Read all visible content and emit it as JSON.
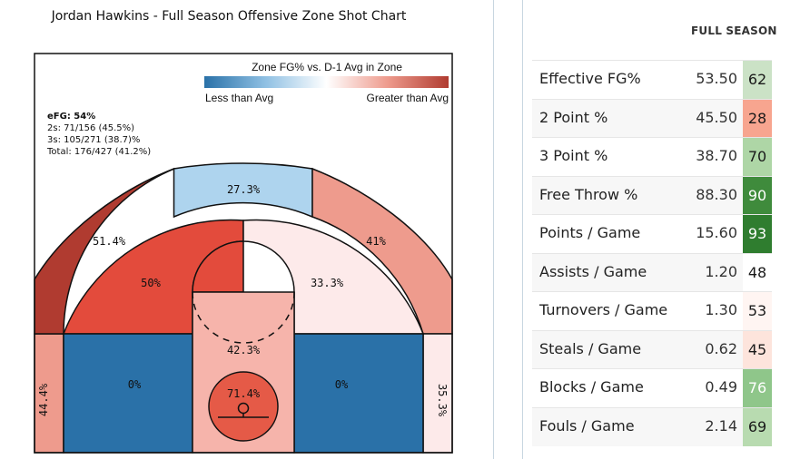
{
  "chart_data": {
    "type": "shot-chart",
    "title": "Jordan Hawkins - Full Season Offensive Zone Shot Chart",
    "legend": {
      "title": "Zone FG% vs. D-1 Avg in Zone",
      "low_label": "Less than Avg",
      "high_label": "Greater than Avg",
      "position": "top-right"
    },
    "summary": {
      "efg": "eFG: 54%",
      "twos": "2s: 71/156 (45.5%)",
      "threes": "3s: 105/271 (38.7)%",
      "total": "Total: 176/427 (41.2%)"
    },
    "zones": [
      {
        "zone": "left-corner-3",
        "label": "44.4%",
        "fg_pct": 44.4,
        "color": "#ee9b8d"
      },
      {
        "zone": "left-wing-3",
        "label": "51.4%",
        "fg_pct": 51.4,
        "color": "#b03b30"
      },
      {
        "zone": "top-key-3",
        "label": "27.3%",
        "fg_pct": 27.3,
        "color": "#aed4ee"
      },
      {
        "zone": "right-wing-3",
        "label": "41%",
        "fg_pct": 41.0,
        "color": "#ee9b8d"
      },
      {
        "zone": "right-corner-3",
        "label": "35.3%",
        "fg_pct": 35.3,
        "color": "#fdeaea"
      },
      {
        "zone": "left-midrange",
        "label": "50%",
        "fg_pct": 50.0,
        "color": "#e34b3c"
      },
      {
        "zone": "elbow-left",
        "label": "",
        "fg_pct": null,
        "color": "#e34b3c"
      },
      {
        "zone": "right-midrange",
        "label": "33.3%",
        "fg_pct": 33.3,
        "color": "#fdeaea"
      },
      {
        "zone": "left-baseline-2",
        "label": "0%",
        "fg_pct": 0,
        "color": "#2a71a8"
      },
      {
        "zone": "right-baseline-2",
        "label": "0%",
        "fg_pct": 0,
        "color": "#2a71a8"
      },
      {
        "zone": "paint",
        "label": "42.3%",
        "fg_pct": 42.3,
        "color": "#f6b4ab"
      },
      {
        "zone": "restricted-area",
        "label": "71.4%",
        "fg_pct": 71.4,
        "color": "#e55a47"
      }
    ]
  },
  "stats_panel": {
    "header": "FULL SEASON",
    "rows": [
      {
        "label": "Effective FG%",
        "value": "53.50",
        "percentile": "62",
        "color": "#cbe2c6",
        "text_color": "#1a1a1a"
      },
      {
        "label": "2 Point %",
        "value": "45.50",
        "percentile": "28",
        "color": "#f7a58f",
        "text_color": "#1a1a1a"
      },
      {
        "label": "3 Point %",
        "value": "38.70",
        "percentile": "70",
        "color": "#aed6a6",
        "text_color": "#1a1a1a"
      },
      {
        "label": "Free Throw %",
        "value": "88.30",
        "percentile": "90",
        "color": "#3f8b3c",
        "text_color": "#ffffff"
      },
      {
        "label": "Points / Game",
        "value": "15.60",
        "percentile": "93",
        "color": "#2f7d2f",
        "text_color": "#ffffff"
      },
      {
        "label": "Assists / Game",
        "value": "1.20",
        "percentile": "48",
        "color": "#ffffff",
        "text_color": "#1a1a1a"
      },
      {
        "label": "Turnovers / Game",
        "value": "1.30",
        "percentile": "53",
        "color": "#fff5f2",
        "text_color": "#1a1a1a"
      },
      {
        "label": "Steals / Game",
        "value": "0.62",
        "percentile": "45",
        "color": "#fde4dc",
        "text_color": "#1a1a1a"
      },
      {
        "label": "Blocks / Game",
        "value": "0.49",
        "percentile": "76",
        "color": "#8fc68a",
        "text_color": "#ffffff"
      },
      {
        "label": "Fouls / Game",
        "value": "2.14",
        "percentile": "69",
        "color": "#b8dbb0",
        "text_color": "#1a1a1a"
      }
    ]
  }
}
